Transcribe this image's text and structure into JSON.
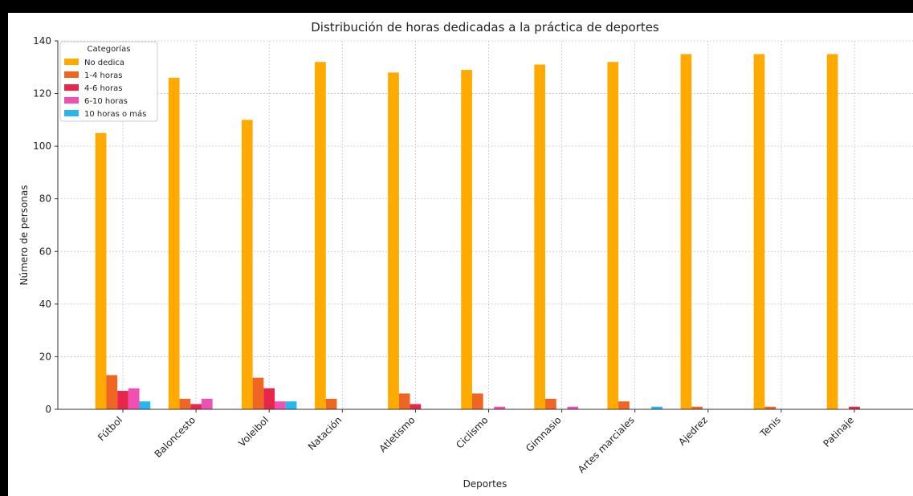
{
  "chart_data": {
    "type": "bar",
    "title": "Distribución de horas dedicadas a la práctica de deportes",
    "xlabel": "Deportes",
    "ylabel": "Número de personas",
    "ylim": [
      0,
      140
    ],
    "yticks": [
      0,
      20,
      40,
      60,
      80,
      100,
      120,
      140
    ],
    "grid": true,
    "legend": {
      "title": "Categorías",
      "placement": "top-left"
    },
    "categories": [
      "Fútbol",
      "Baloncesto",
      "Voleibol",
      "Natación",
      "Atletismo",
      "Ciclismo",
      "Gimnasio",
      "Artes marciales",
      "Ajedrez",
      "Tenis",
      "Patinaje"
    ],
    "series": [
      {
        "name": "No dedica",
        "color": "#FFAA00",
        "values": [
          105,
          126,
          110,
          132,
          128,
          129,
          131,
          132,
          135,
          135,
          135
        ]
      },
      {
        "name": "1-4 horas",
        "color": "#EE6622",
        "values": [
          13,
          4,
          12,
          4,
          6,
          6,
          4,
          3,
          1,
          1,
          0
        ]
      },
      {
        "name": "4-6 horas",
        "color": "#E8264A",
        "values": [
          7,
          2,
          8,
          0,
          2,
          0,
          0,
          0,
          0,
          0,
          1
        ]
      },
      {
        "name": "6-10 horas",
        "color": "#F050B4",
        "values": [
          8,
          4,
          3,
          0,
          0,
          1,
          1,
          0,
          0,
          0,
          0
        ]
      },
      {
        "name": "10 horas o más",
        "color": "#29B6EC",
        "values": [
          3,
          0,
          3,
          0,
          0,
          0,
          0,
          1,
          0,
          0,
          0
        ]
      }
    ]
  }
}
